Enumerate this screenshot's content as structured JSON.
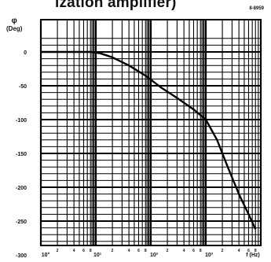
{
  "header": {
    "title": "ization amplifier)",
    "code": "8-8959"
  },
  "chart_data": {
    "type": "line",
    "title": "ization amplifier)",
    "ylabel_symbol": "φ",
    "ylabel_unit": "(Deg)",
    "xlabel": "",
    "x_scale": "log",
    "xlim": [
      1,
      20000
    ],
    "ylim": [
      -320,
      30
    ],
    "x_tick_labels": [
      "10°",
      "10¹",
      "10²",
      "10³",
      "f (Hz)"
    ],
    "x_minor_labels": [
      "2",
      "4",
      "6",
      "8",
      "2",
      "4",
      "6",
      "8",
      "2",
      "4",
      "6",
      "8",
      "2",
      "4",
      "6",
      "8"
    ],
    "y_ticks": [
      0,
      -50,
      -100,
      -150,
      -200,
      -250,
      -300
    ],
    "y_tick_labels": [
      "0",
      "-50",
      "-100",
      "-150",
      "-200",
      "-250",
      "-300"
    ],
    "grid": true,
    "series": [
      {
        "x": [
          1,
          3,
          8,
          12,
          20,
          40,
          80,
          150,
          300,
          600,
          1000,
          1600,
          2500,
          4000,
          6000,
          8000
        ],
        "y": [
          0,
          0,
          0,
          -2,
          -8,
          -20,
          -35,
          -52,
          -68,
          -85,
          -100,
          -130,
          -170,
          -210,
          -240,
          -262
        ]
      }
    ]
  }
}
